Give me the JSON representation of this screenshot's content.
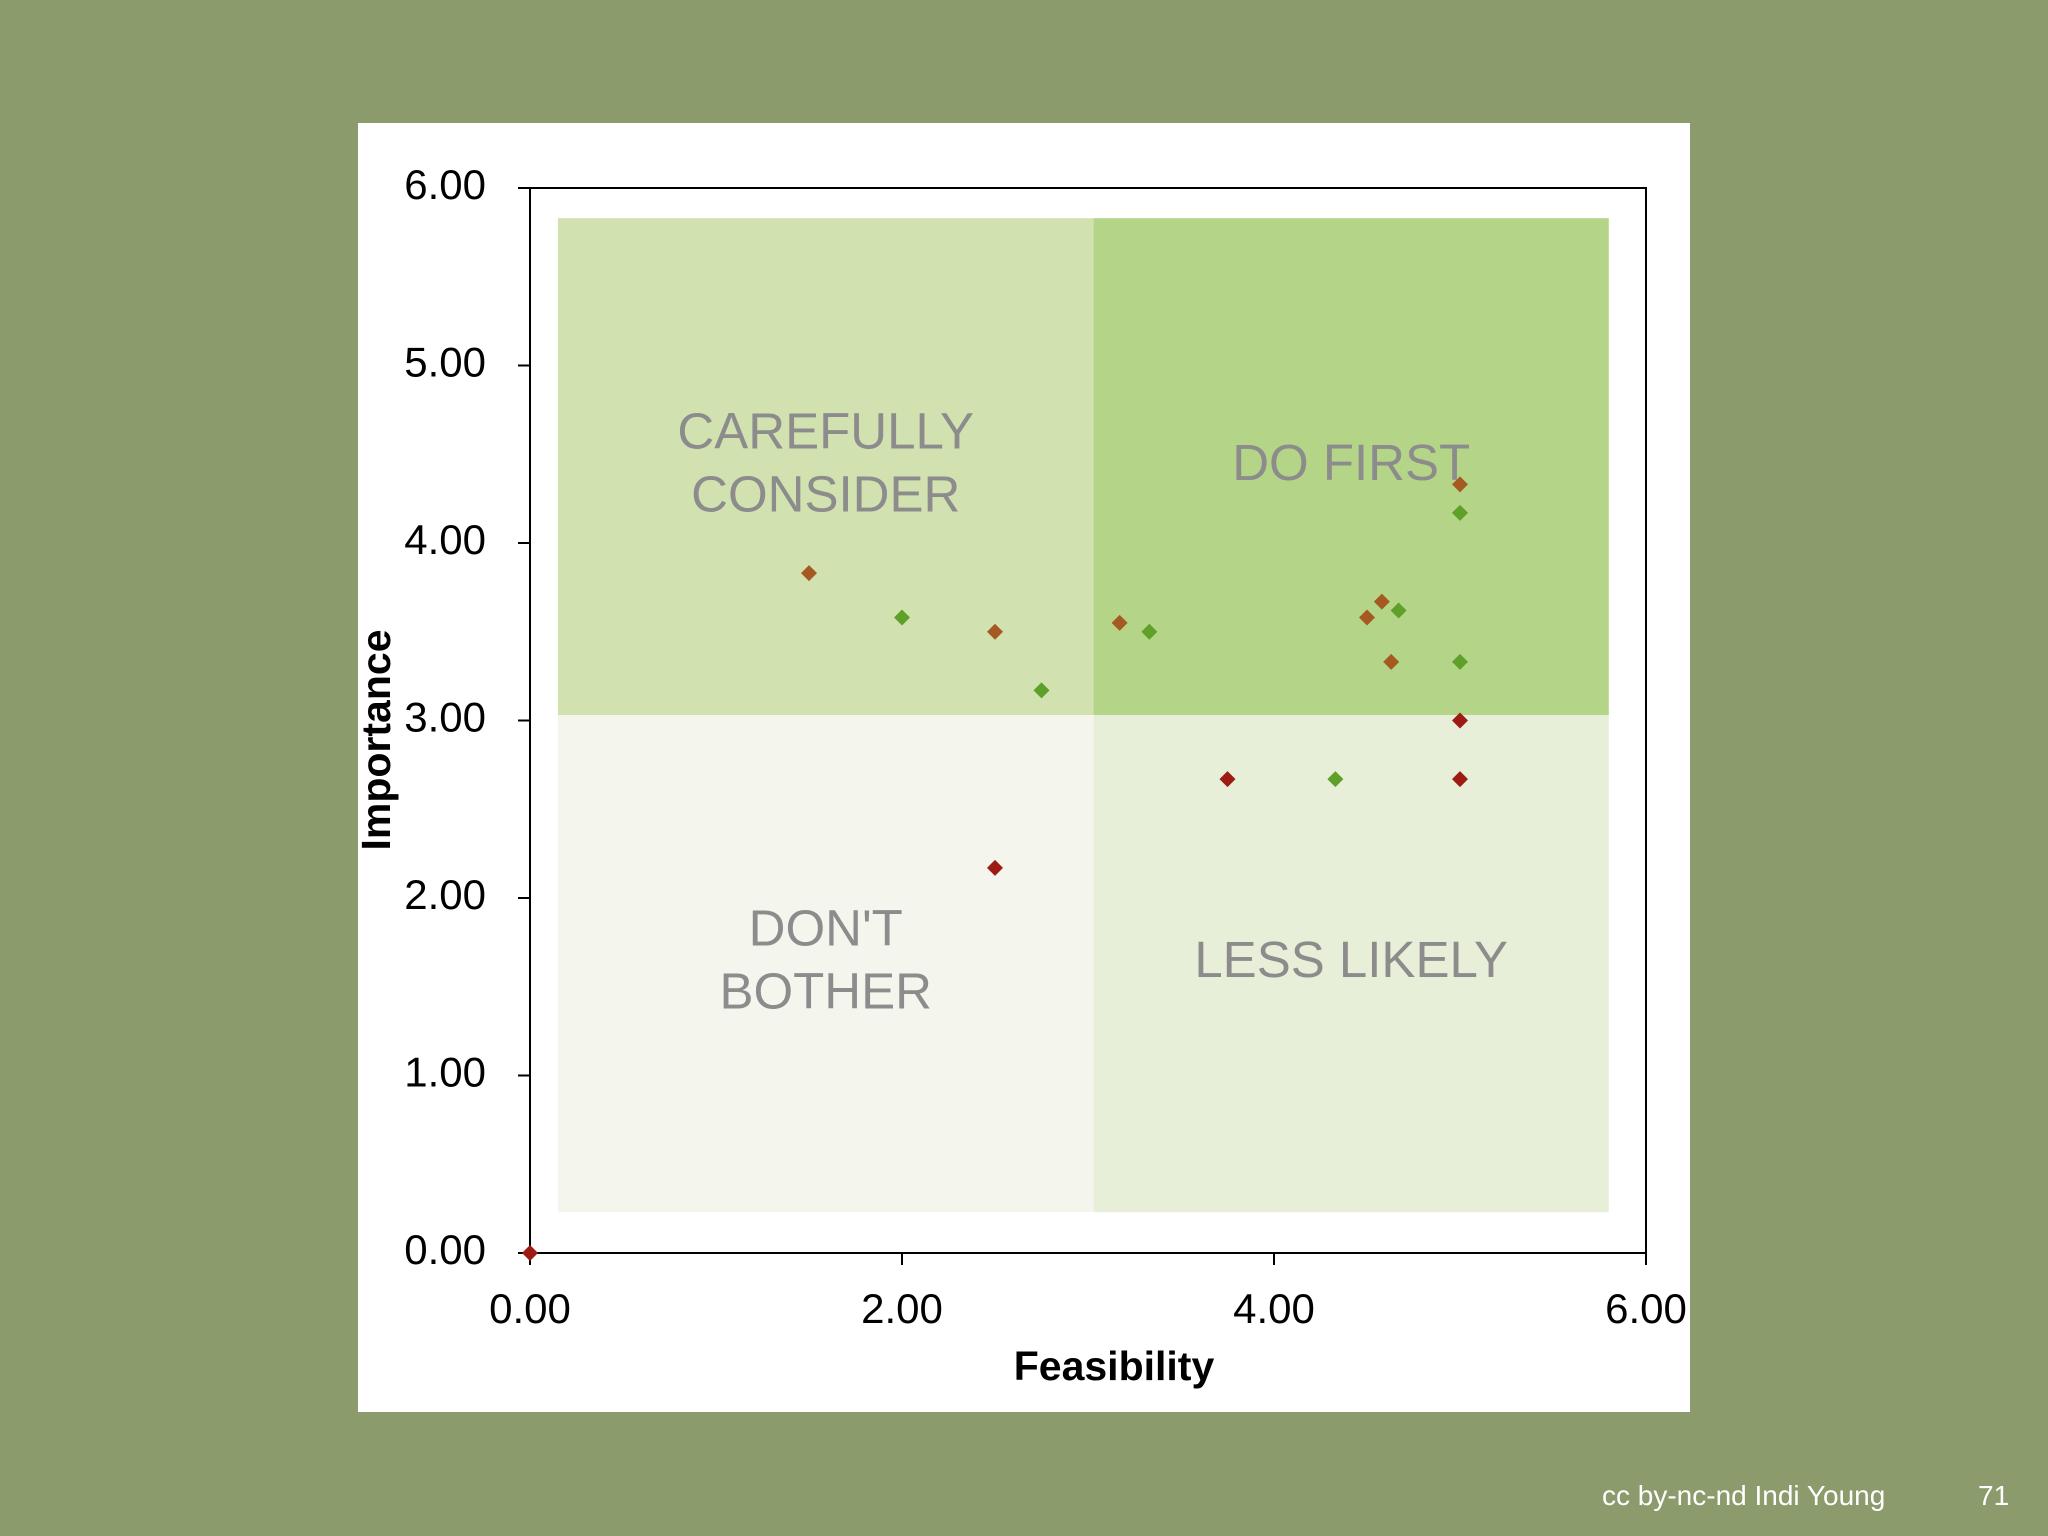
{
  "colors": {
    "background": "#8b9b6b",
    "card": "#ffffff",
    "careful": "#d1e1b0",
    "do_first": "#b4d587",
    "dont_bother": "#f4f6ed",
    "less_likely": "#e8efd8",
    "quadrant_label": "#8c8c8c",
    "point_green": "#5fa02a",
    "point_brown": "#a45a20",
    "point_red": "#9e1b14"
  },
  "chart_data": {
    "type": "scatter",
    "xlabel": "Feasibility",
    "ylabel": "Importance",
    "xlim": [
      0,
      6
    ],
    "ylim": [
      0,
      6
    ],
    "x_ticks": [
      "0.00",
      "2.00",
      "4.00",
      "6.00"
    ],
    "y_ticks": [
      "0.00",
      "1.00",
      "2.00",
      "3.00",
      "4.00",
      "5.00",
      "6.00"
    ],
    "quadrants": [
      {
        "id": "careful",
        "lines": [
          "CAREFULLY",
          "CONSIDER"
        ],
        "x": [
          0.15,
          3.03
        ],
        "y": [
          3.03,
          5.83
        ]
      },
      {
        "id": "do_first",
        "lines": [
          "DO FIRST"
        ],
        "x": [
          3.03,
          5.8
        ],
        "y": [
          3.03,
          5.83
        ]
      },
      {
        "id": "dont_bother",
        "lines": [
          "DON'T",
          "BOTHER"
        ],
        "x": [
          0.15,
          3.03
        ],
        "y": [
          0.23,
          3.03
        ]
      },
      {
        "id": "less_likely",
        "lines": [
          "LESS LIKELY"
        ],
        "x": [
          3.03,
          5.8
        ],
        "y": [
          0.23,
          3.03
        ]
      }
    ],
    "points": [
      {
        "x": 1.5,
        "y": 3.83,
        "color": "brown"
      },
      {
        "x": 2.0,
        "y": 3.58,
        "color": "green"
      },
      {
        "x": 2.5,
        "y": 3.5,
        "color": "brown"
      },
      {
        "x": 2.75,
        "y": 3.17,
        "color": "green"
      },
      {
        "x": 3.17,
        "y": 3.55,
        "color": "brown"
      },
      {
        "x": 3.33,
        "y": 3.5,
        "color": "green"
      },
      {
        "x": 4.5,
        "y": 3.58,
        "color": "brown"
      },
      {
        "x": 4.58,
        "y": 3.67,
        "color": "brown"
      },
      {
        "x": 4.67,
        "y": 3.62,
        "color": "green"
      },
      {
        "x": 4.63,
        "y": 3.33,
        "color": "brown"
      },
      {
        "x": 5.0,
        "y": 4.33,
        "color": "brown"
      },
      {
        "x": 5.0,
        "y": 4.17,
        "color": "green"
      },
      {
        "x": 5.0,
        "y": 3.33,
        "color": "green"
      },
      {
        "x": 5.0,
        "y": 3.0,
        "color": "red"
      },
      {
        "x": 5.0,
        "y": 2.67,
        "color": "red"
      },
      {
        "x": 3.75,
        "y": 2.67,
        "color": "red"
      },
      {
        "x": 4.33,
        "y": 2.67,
        "color": "green"
      },
      {
        "x": 2.5,
        "y": 2.17,
        "color": "red"
      },
      {
        "x": 0.0,
        "y": 0.0,
        "color": "red"
      }
    ]
  },
  "footer": {
    "credit": "cc by-nc-nd Indi Young",
    "page_number": "71"
  }
}
